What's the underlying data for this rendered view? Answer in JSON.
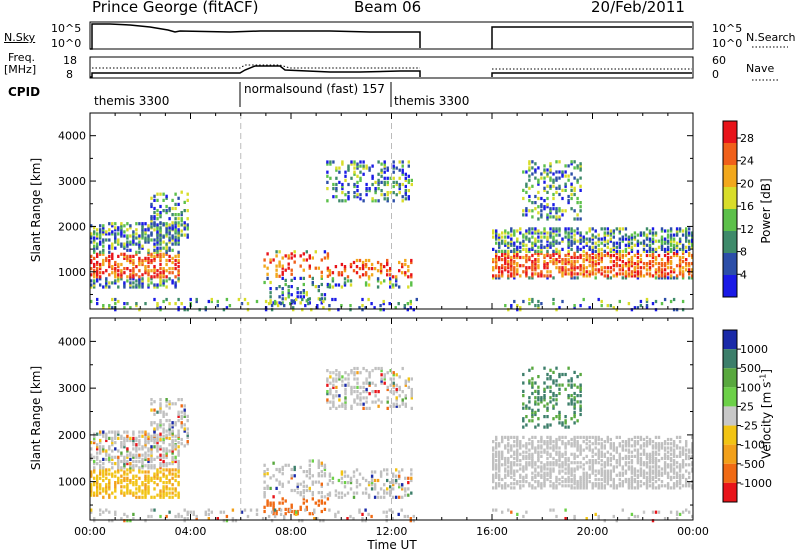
{
  "header": {
    "station": "Prince George (fitACF)",
    "beam": "Beam 06",
    "date": "20/Feb/2011"
  },
  "summary_panels": {
    "nsky_label": "N.Sky",
    "nsearch_label": "N.Search",
    "freq_label_1": "Freq.",
    "freq_label_2": "[MHz]",
    "nave_label": "Nave",
    "cpid_label": "CPID",
    "nsky_ticks": [
      "10^5",
      "10^0"
    ],
    "nsearch_ticks": [
      "10^5",
      "10^0"
    ],
    "freq_ticks": [
      "18",
      "8"
    ],
    "nave_ticks": [
      "60",
      "0"
    ]
  },
  "cpid_segments": [
    {
      "label": "themis 3300",
      "start_hr": 0.0
    },
    {
      "label": "normalsound (fast) 157",
      "start_hr": 6.0
    },
    {
      "label": "themis 3300",
      "start_hr": 12.0
    }
  ],
  "chart_data": [
    {
      "type": "heatmap",
      "name": "power",
      "ylabel": "Slant Range [km]",
      "xlabel": "Time UT",
      "x_ticks": [
        "00:00",
        "04:00",
        "08:00",
        "12:00",
        "16:00",
        "20:00",
        "00:00"
      ],
      "x_range_hr": [
        0,
        24
      ],
      "ylim": [
        180,
        4500
      ],
      "y_ticks": [
        1000,
        2000,
        3000,
        4000
      ],
      "colorbar_label": "Power [dB]",
      "colorbar_ticks": [
        4,
        8,
        12,
        16,
        20,
        24,
        28
      ],
      "colorbar_range": [
        0,
        31
      ],
      "data_gap_hr": [
        13.0,
        16.0
      ]
    },
    {
      "type": "heatmap",
      "name": "velocity",
      "ylabel": "Slant Range [km]",
      "xlabel": "Time UT",
      "x_ticks": [
        "00:00",
        "04:00",
        "08:00",
        "12:00",
        "16:00",
        "20:00",
        "00:00"
      ],
      "x_range_hr": [
        0,
        24
      ],
      "ylim": [
        180,
        4500
      ],
      "y_ticks": [
        1000,
        2000,
        3000,
        4000
      ],
      "colorbar_label": "Velocity [m s",
      "colorbar_label_sup": "-1",
      "colorbar_label_end": "]",
      "colorbar_ticks": [
        "1000",
        "500",
        "100",
        "25",
        "-25",
        "-100",
        "-500",
        "-1000"
      ],
      "data_gap_hr": [
        13.0,
        16.0
      ]
    }
  ],
  "colors": {
    "power_scale": [
      "#1a1ae6",
      "#2c4ea8",
      "#3e8a6a",
      "#5cc04a",
      "#d8dd2a",
      "#f2a81c",
      "#f0601a",
      "#e8141a"
    ],
    "velocity_scale": [
      "#1a2aa8",
      "#3c7e6a",
      "#58a83e",
      "#6cd048",
      "#c8c8c8",
      "#f2c414",
      "#f2a01a",
      "#f06a14",
      "#e8141a"
    ],
    "ground_scatter": "#c0c0c0"
  }
}
